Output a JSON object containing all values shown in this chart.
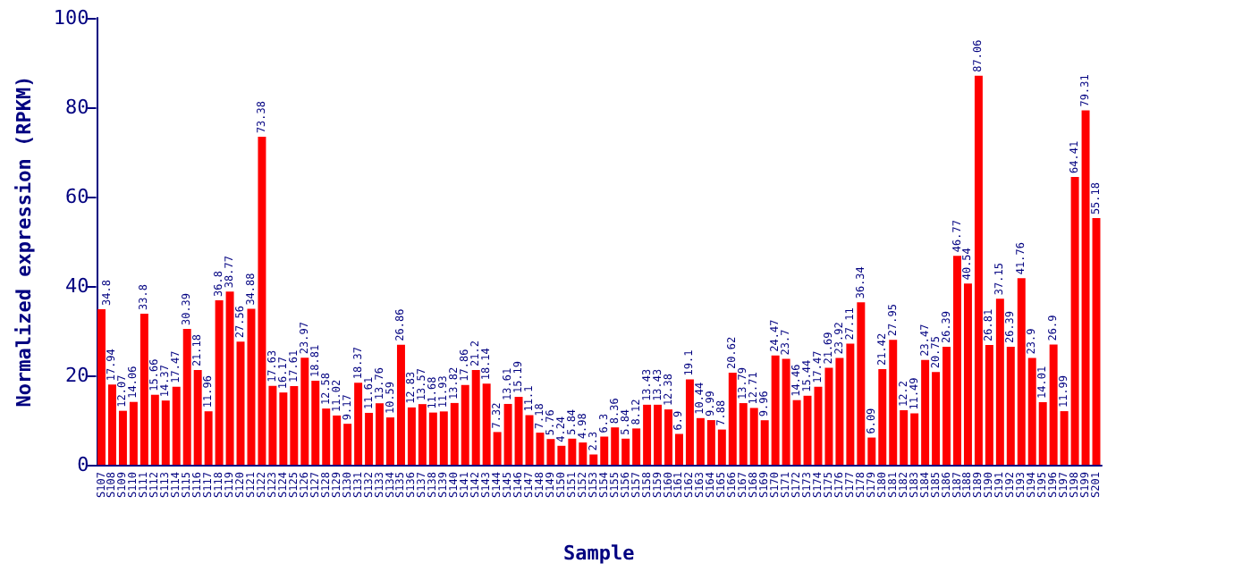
{
  "chart_data": {
    "type": "bar",
    "xlabel": "Sample",
    "ylabel": "Normalized expression (RPKM)",
    "categories": [
      "S107",
      "S108",
      "S109",
      "S110",
      "S111",
      "S112",
      "S113",
      "S114",
      "S115",
      "S116",
      "S117",
      "S118",
      "S119",
      "S120",
      "S121",
      "S122",
      "S123",
      "S124",
      "S125",
      "S126",
      "S127",
      "S128",
      "S129",
      "S130",
      "S131",
      "S132",
      "S133",
      "S134",
      "S135",
      "S136",
      "S137",
      "S138",
      "S139",
      "S140",
      "S141",
      "S142",
      "S143",
      "S144",
      "S145",
      "S146",
      "S147",
      "S148",
      "S149",
      "S150",
      "S151",
      "S152",
      "S153",
      "S154",
      "S155",
      "S156",
      "S157",
      "S158",
      "S159",
      "S160",
      "S161",
      "S162",
      "S163",
      "S164",
      "S165",
      "S166",
      "S167",
      "S168",
      "S169",
      "S170",
      "S171",
      "S172",
      "S173",
      "S174",
      "S175",
      "S176",
      "S177",
      "S178",
      "S179",
      "S180",
      "S181",
      "S182",
      "S183",
      "S184",
      "S185",
      "S186",
      "S187",
      "S188",
      "S189",
      "S190",
      "S191",
      "S192",
      "S193",
      "S194",
      "S195",
      "S196",
      "S197",
      "S198",
      "S199",
      "S201"
    ],
    "values": [
      34.8,
      17.94,
      12.07,
      14.06,
      33.8,
      15.66,
      14.37,
      17.47,
      30.39,
      21.18,
      11.96,
      36.8,
      38.77,
      27.56,
      34.88,
      73.38,
      17.63,
      16.17,
      17.61,
      23.97,
      18.81,
      12.58,
      11.02,
      9.17,
      18.37,
      11.61,
      13.76,
      10.59,
      26.86,
      12.83,
      13.57,
      11.68,
      11.93,
      13.82,
      17.86,
      21.2,
      18.14,
      7.32,
      13.61,
      15.19,
      11.1,
      7.18,
      5.76,
      4.24,
      5.84,
      4.98,
      2.3,
      6.3,
      8.36,
      5.84,
      8.12,
      13.43,
      13.43,
      12.38,
      6.9,
      19.1,
      10.44,
      9.99,
      7.88,
      20.62,
      13.79,
      12.71,
      9.96,
      24.47,
      23.7,
      14.46,
      15.44,
      17.47,
      21.69,
      23.92,
      27.11,
      36.34,
      6.09,
      21.42,
      27.95,
      12.2,
      11.49,
      23.47,
      20.75,
      26.39,
      46.77,
      40.54,
      87.06,
      26.81,
      37.15,
      26.39,
      41.76,
      23.9,
      14.01,
      26.9,
      11.99,
      64.41,
      79.31,
      55.18
    ],
    "color": "#ff0000",
    "ylim": [
      0,
      100
    ],
    "yticks": [
      0,
      20,
      40,
      60,
      80,
      100
    ],
    "data_labels": true
  }
}
